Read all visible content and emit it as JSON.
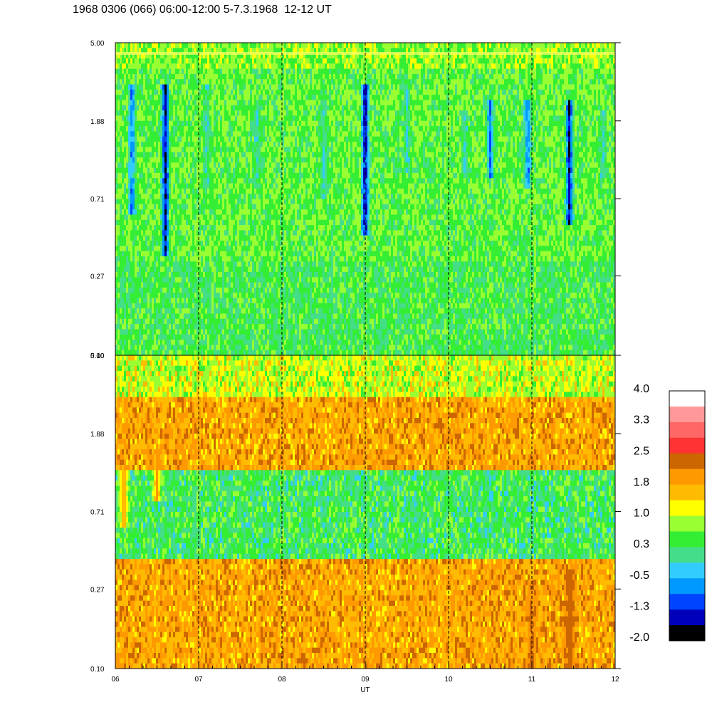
{
  "title": "1968 0306 (066) 06:00-12:00 5-7.3.1968  12-12 UT",
  "chart_data": [
    {
      "type": "heatmap",
      "panel": "upper",
      "x_unit": "UT (hour)",
      "xlim": [
        6,
        12
      ],
      "y_tick_labels": [
        "5.00",
        "1.88",
        "0.71",
        "0.27",
        "0.10"
      ],
      "y_tick_values": [
        5.0,
        1.88,
        0.71,
        0.27,
        0.1
      ],
      "ylim": [
        0.1,
        5.0
      ],
      "y_scale": "log",
      "dominant_levels": "green/cyan background (~0.3 to 1.0) with blue/dark blue bursts (-0.5 to -2.0) centred near 06:30, 07:40, 08:50, 09:15, 10:20, 10:55, 11:25, 11:50 UT",
      "bursts": [
        {
          "ut": 6.2,
          "ymin": 0.6,
          "ymax": 3.0,
          "value": -1.3
        },
        {
          "ut": 6.6,
          "ymin": 0.35,
          "ymax": 3.0,
          "value": -2.0
        },
        {
          "ut": 7.1,
          "ymin": 0.8,
          "ymax": 3.0,
          "value": -0.5
        },
        {
          "ut": 7.7,
          "ymin": 0.8,
          "ymax": 2.5,
          "value": -0.5
        },
        {
          "ut": 8.5,
          "ymin": 0.7,
          "ymax": 2.5,
          "value": -0.5
        },
        {
          "ut": 9.0,
          "ymin": 0.45,
          "ymax": 3.0,
          "value": -2.0
        },
        {
          "ut": 9.5,
          "ymin": 1.0,
          "ymax": 3.0,
          "value": -0.5
        },
        {
          "ut": 10.2,
          "ymin": 0.9,
          "ymax": 2.2,
          "value": -0.5
        },
        {
          "ut": 10.5,
          "ymin": 0.9,
          "ymax": 2.5,
          "value": -1.3
        },
        {
          "ut": 10.95,
          "ymin": 0.8,
          "ymax": 2.5,
          "value": -1.3
        },
        {
          "ut": 11.45,
          "ymin": 0.5,
          "ymax": 2.5,
          "value": -2.0
        },
        {
          "ut": 11.85,
          "ymin": 0.9,
          "ymax": 2.2,
          "value": -0.5
        }
      ]
    },
    {
      "type": "heatmap",
      "panel": "lower",
      "x_unit": "UT (hour)",
      "xlim": [
        6,
        12
      ],
      "x_tick_labels": [
        "06",
        "07",
        "08",
        "09",
        "10",
        "11",
        "12"
      ],
      "x_tick_values": [
        6,
        7,
        8,
        9,
        10,
        11,
        12
      ],
      "xlabel": "UT",
      "y_tick_labels": [
        "5.00",
        "1.88",
        "0.71",
        "0.27",
        "0.10"
      ],
      "y_tick_values": [
        5.0,
        1.88,
        0.71,
        0.27,
        0.1
      ],
      "ylim": [
        0.1,
        5.0
      ],
      "y_scale": "log",
      "dominant_levels": "yellow/green near top (~1.0), orange (~1.8) through mid and low frequencies, red (~2.5) streak near 11:30 UT at the lowest frequencies",
      "bands": [
        {
          "ymin": 3.0,
          "ymax": 5.0,
          "value": 1.0
        },
        {
          "ymin": 1.2,
          "ymax": 3.0,
          "value": 1.8
        },
        {
          "ymin": 0.4,
          "ymax": 1.2,
          "value": 0.3
        },
        {
          "ymin": 0.1,
          "ymax": 0.4,
          "value": 1.8
        }
      ],
      "features": [
        {
          "ut": 6.1,
          "ymin": 0.6,
          "ymax": 1.3,
          "value": 1.8
        },
        {
          "ut": 6.5,
          "ymin": 0.8,
          "ymax": 1.5,
          "value": 1.8
        },
        {
          "ut": 11.45,
          "ymin": 0.1,
          "ymax": 0.35,
          "value": 2.5
        },
        {
          "ut": 11.0,
          "ymin": 0.1,
          "ymax": 0.3,
          "value": 2.2
        }
      ]
    }
  ],
  "colorbar": {
    "tick_labels": [
      "4.0",
      "3.3",
      "2.5",
      "1.8",
      "1.0",
      "0.3",
      "-0.5",
      "-1.3",
      "-2.0"
    ],
    "colors": [
      "#ffffff",
      "#ff9999",
      "#ff6666",
      "#ff3333",
      "#cc6600",
      "#ff9900",
      "#ffbb00",
      "#ffff00",
      "#99ff33",
      "#33ee33",
      "#44dd88",
      "#33ccff",
      "#0099ff",
      "#0044ff",
      "#0000bb",
      "#000000"
    ]
  }
}
